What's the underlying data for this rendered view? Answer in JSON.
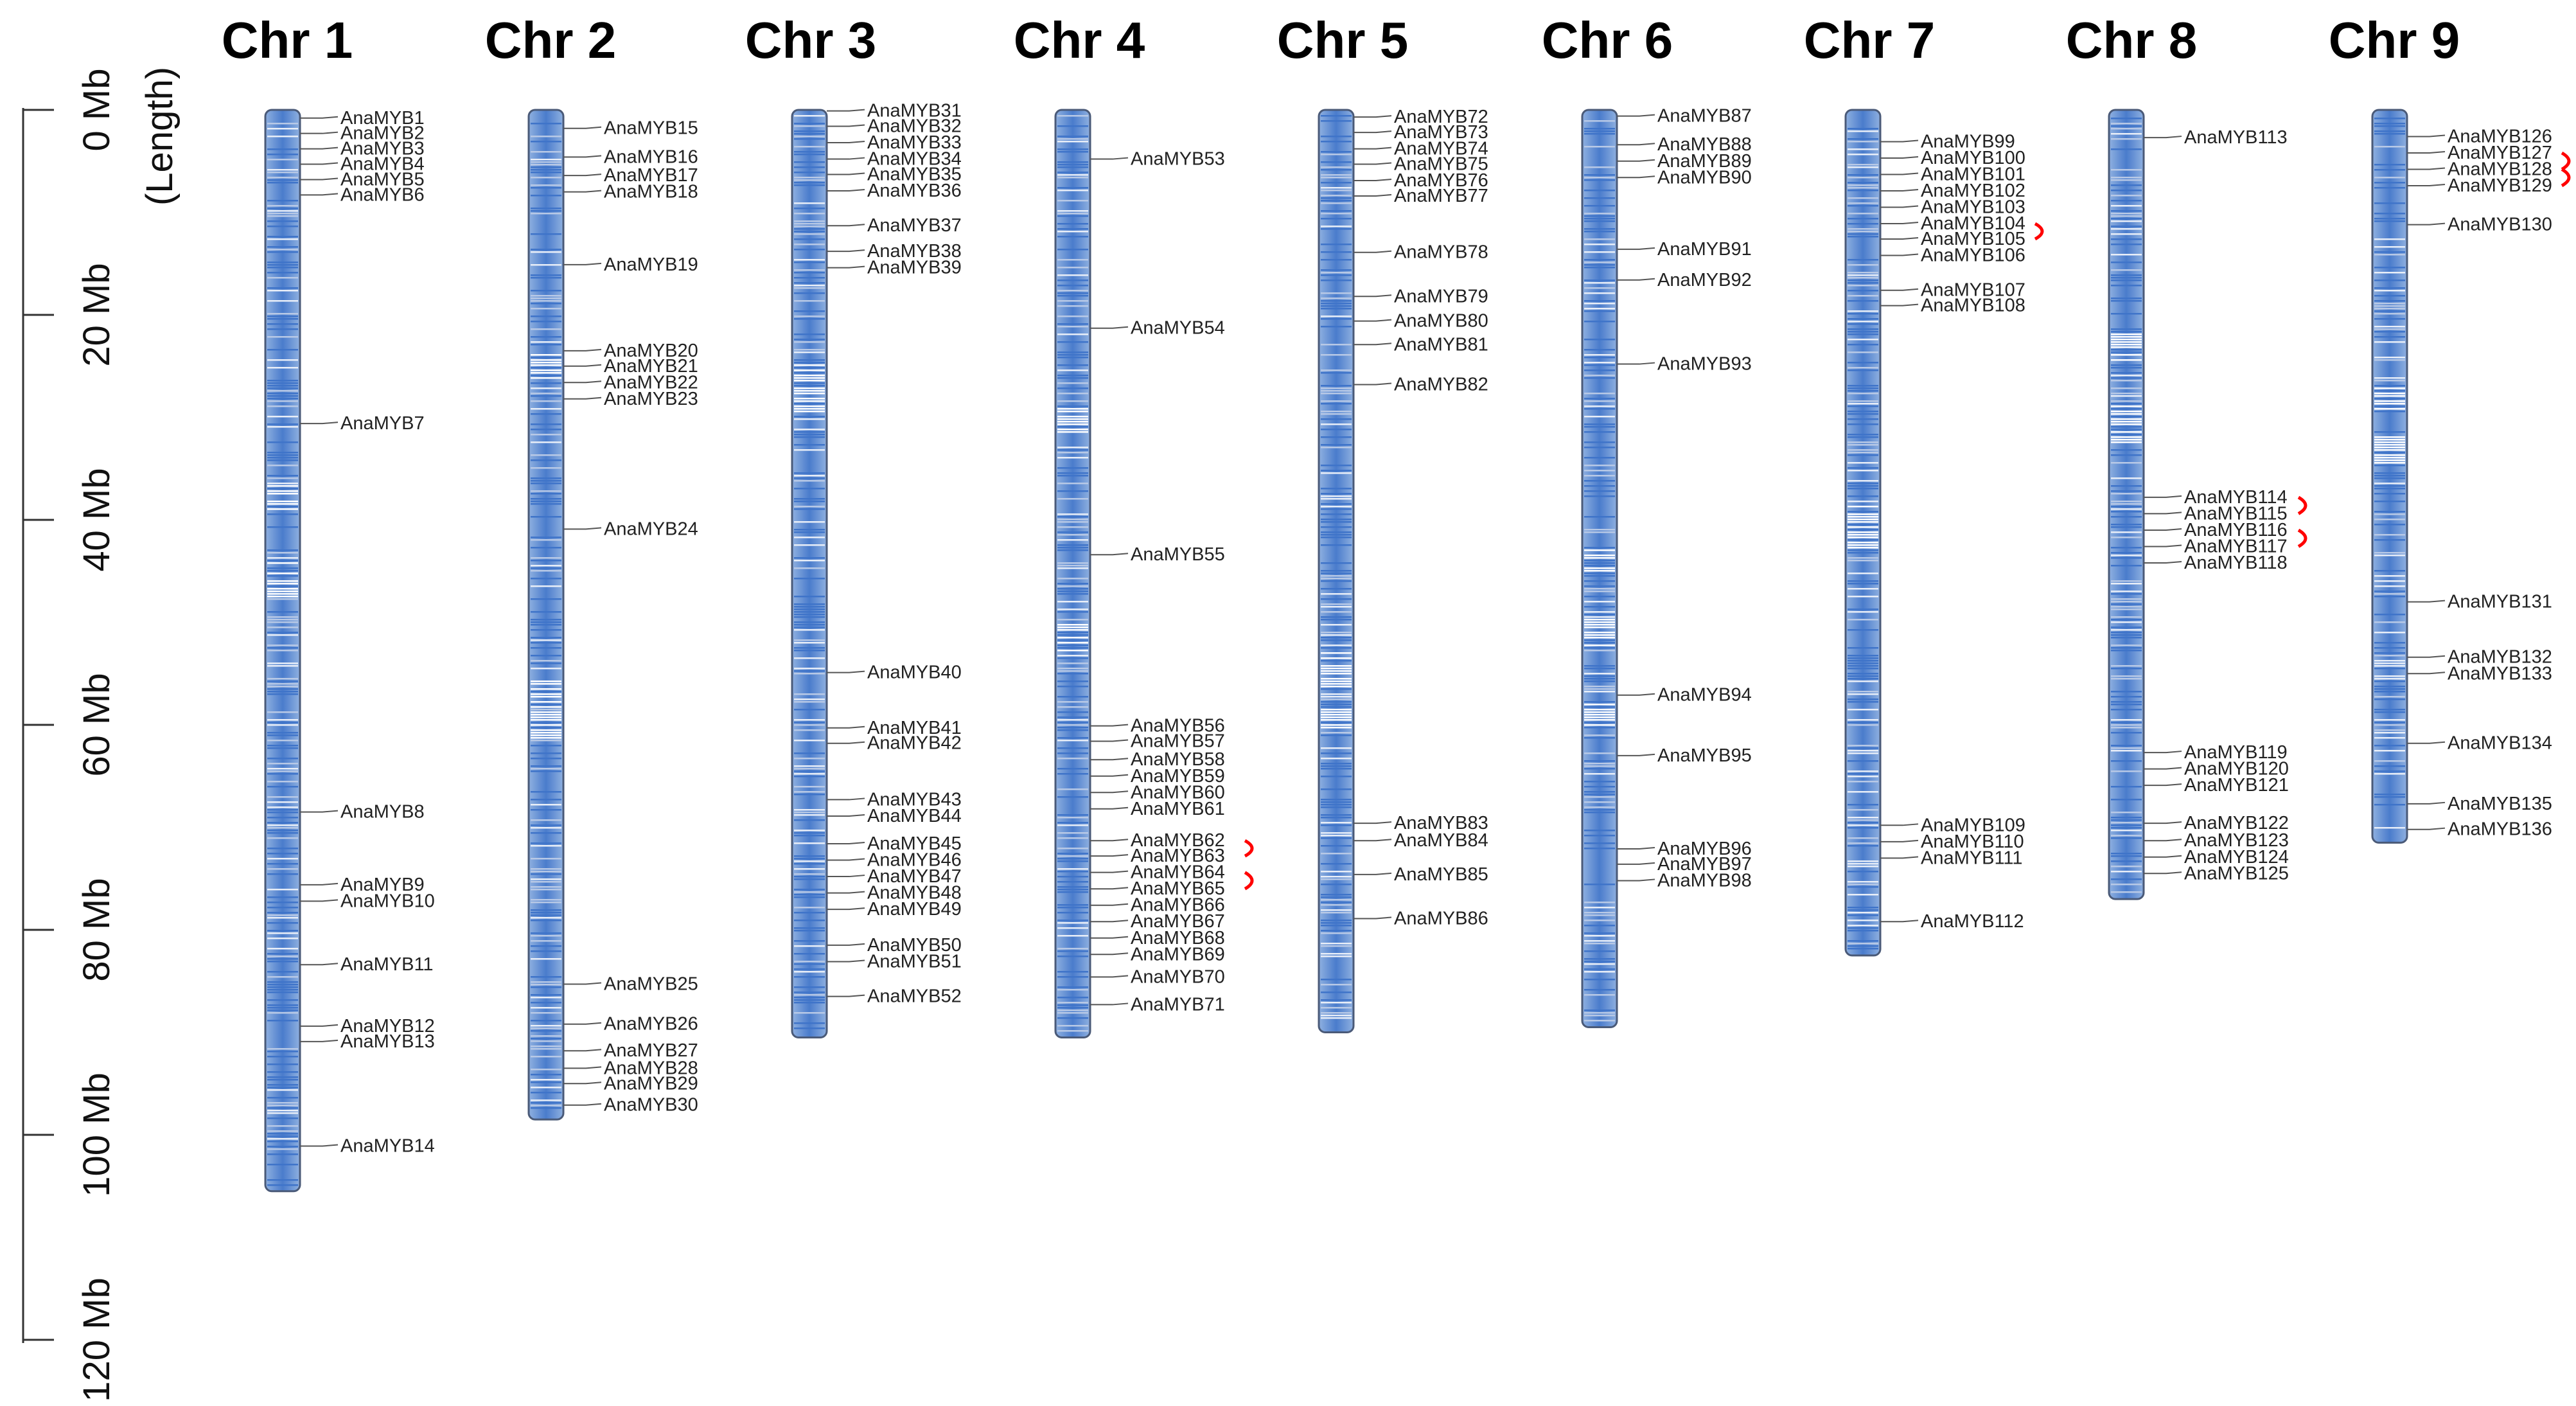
{
  "axis": {
    "title": "(Length)",
    "unit": "Mb",
    "ticks": [
      0,
      20,
      40,
      60,
      80,
      100,
      120
    ],
    "tick_labels": [
      "0 Mb",
      "20 Mb",
      "40 Mb",
      "60 Mb",
      "80 Mb",
      "100 Mb",
      "120 Mb"
    ],
    "range": [
      0,
      120
    ]
  },
  "colors": {
    "band_dark": "#3f74c9",
    "band_mid": "#6d95d4",
    "band_light": "#b8c9e6",
    "outline": "#4a5a78",
    "leader": "#555555",
    "tandem": "#ff0000",
    "text": "#111111"
  },
  "chromosomes": [
    {
      "name": "Chr 1",
      "length_mb": 105.5,
      "gaps_mb": [
        38,
        45.5,
        46
      ],
      "genes": [
        [
          "AnaMYB1",
          0.8
        ],
        [
          "AnaMYB2",
          2.3
        ],
        [
          "AnaMYB3",
          3.8
        ],
        [
          "AnaMYB4",
          5.3
        ],
        [
          "AnaMYB5",
          6.8
        ],
        [
          "AnaMYB6",
          8.3
        ],
        [
          "AnaMYB7",
          30.6
        ],
        [
          "AnaMYB8",
          68.5
        ],
        [
          "AnaMYB9",
          75.6
        ],
        [
          "AnaMYB10",
          77.2
        ],
        [
          "AnaMYB11",
          83.4
        ],
        [
          "AnaMYB12",
          89.4
        ],
        [
          "AnaMYB13",
          90.9
        ],
        [
          "AnaMYB14",
          101.1
        ]
      ]
    },
    {
      "name": "Chr 2",
      "length_mb": 98.5,
      "gaps_mb": [
        25,
        57,
        60
      ],
      "genes": [
        [
          "AnaMYB15",
          1.8
        ],
        [
          "AnaMYB16",
          4.6
        ],
        [
          "AnaMYB17",
          6.4
        ],
        [
          "AnaMYB18",
          8.0
        ],
        [
          "AnaMYB19",
          15.1
        ],
        [
          "AnaMYB20",
          23.5
        ],
        [
          "AnaMYB21",
          25.0
        ],
        [
          "AnaMYB22",
          26.6
        ],
        [
          "AnaMYB23",
          28.2
        ],
        [
          "AnaMYB24",
          40.9
        ],
        [
          "AnaMYB25",
          85.3
        ],
        [
          "AnaMYB26",
          89.2
        ],
        [
          "AnaMYB27",
          91.8
        ],
        [
          "AnaMYB28",
          93.5
        ],
        [
          "AnaMYB29",
          95.0
        ],
        [
          "AnaMYB30",
          97.1
        ]
      ]
    },
    {
      "name": "Chr 3",
      "length_mb": 90.5,
      "gaps_mb": [
        26,
        27,
        28
      ],
      "genes": [
        [
          "AnaMYB31",
          0.1
        ],
        [
          "AnaMYB32",
          1.6
        ],
        [
          "AnaMYB33",
          3.2
        ],
        [
          "AnaMYB34",
          4.8
        ],
        [
          "AnaMYB35",
          6.3
        ],
        [
          "AnaMYB36",
          7.9
        ],
        [
          "AnaMYB37",
          11.3
        ],
        [
          "AnaMYB38",
          13.8
        ],
        [
          "AnaMYB39",
          15.4
        ],
        [
          "AnaMYB40",
          54.9
        ],
        [
          "AnaMYB41",
          60.3
        ],
        [
          "AnaMYB42",
          61.8
        ],
        [
          "AnaMYB43",
          67.3
        ],
        [
          "AnaMYB44",
          68.9
        ],
        [
          "AnaMYB45",
          71.6
        ],
        [
          "AnaMYB46",
          73.2
        ],
        [
          "AnaMYB47",
          74.8
        ],
        [
          "AnaMYB48",
          76.4
        ],
        [
          "AnaMYB49",
          78.0
        ],
        [
          "AnaMYB50",
          81.5
        ],
        [
          "AnaMYB51",
          83.1
        ],
        [
          "AnaMYB52",
          86.5
        ]
      ]
    },
    {
      "name": "Chr 4",
      "length_mb": 90.5,
      "gaps_mb": [
        30,
        51.5
      ],
      "genes": [
        [
          "AnaMYB53",
          4.8
        ],
        [
          "AnaMYB54",
          21.3
        ],
        [
          "AnaMYB55",
          43.4
        ],
        [
          "AnaMYB56",
          60.1
        ],
        [
          "AnaMYB57",
          61.6
        ],
        [
          "AnaMYB58",
          63.4
        ],
        [
          "AnaMYB59",
          65.0
        ],
        [
          "AnaMYB60",
          66.6
        ],
        [
          "AnaMYB61",
          68.2
        ],
        [
          "AnaMYB62",
          71.3
        ],
        [
          "AnaMYB63",
          72.8
        ],
        [
          "AnaMYB64",
          74.4
        ],
        [
          "AnaMYB65",
          76.0
        ],
        [
          "AnaMYB66",
          77.6
        ],
        [
          "AnaMYB67",
          79.2
        ],
        [
          "AnaMYB68",
          80.8
        ],
        [
          "AnaMYB69",
          82.4
        ],
        [
          "AnaMYB70",
          84.6
        ],
        [
          "AnaMYB71",
          87.3
        ]
      ],
      "tandem_pairs": [
        [
          "AnaMYB62",
          "AnaMYB63"
        ],
        [
          "AnaMYB64",
          "AnaMYB65"
        ]
      ]
    },
    {
      "name": "Chr 5",
      "length_mb": 90.0,
      "gaps_mb": [
        54,
        55,
        59
      ],
      "genes": [
        [
          "AnaMYB72",
          0.7
        ],
        [
          "AnaMYB73",
          2.2
        ],
        [
          "AnaMYB74",
          3.8
        ],
        [
          "AnaMYB75",
          5.3
        ],
        [
          "AnaMYB76",
          6.9
        ],
        [
          "AnaMYB77",
          8.4
        ],
        [
          "AnaMYB78",
          13.9
        ],
        [
          "AnaMYB79",
          18.2
        ],
        [
          "AnaMYB80",
          20.6
        ],
        [
          "AnaMYB81",
          22.9
        ],
        [
          "AnaMYB82",
          26.8
        ],
        [
          "AnaMYB83",
          69.6
        ],
        [
          "AnaMYB84",
          71.3
        ],
        [
          "AnaMYB85",
          74.6
        ],
        [
          "AnaMYB86",
          78.9
        ]
      ]
    },
    {
      "name": "Chr 6",
      "length_mb": 89.5,
      "gaps_mb": [
        44,
        51,
        59
      ],
      "genes": [
        [
          "AnaMYB87",
          0.6
        ],
        [
          "AnaMYB88",
          3.4
        ],
        [
          "AnaMYB89",
          5.0
        ],
        [
          "AnaMYB90",
          6.6
        ],
        [
          "AnaMYB91",
          13.6
        ],
        [
          "AnaMYB92",
          16.6
        ],
        [
          "AnaMYB93",
          24.8
        ],
        [
          "AnaMYB94",
          57.1
        ],
        [
          "AnaMYB95",
          63.0
        ],
        [
          "AnaMYB96",
          72.1
        ],
        [
          "AnaMYB97",
          73.6
        ],
        [
          "AnaMYB98",
          75.2
        ]
      ]
    },
    {
      "name": "Chr 7",
      "length_mb": 82.5,
      "gaps_mb": [
        40,
        41.5
      ],
      "genes": [
        [
          "AnaMYB99",
          3.1
        ],
        [
          "AnaMYB100",
          4.7
        ],
        [
          "AnaMYB101",
          6.3
        ],
        [
          "AnaMYB102",
          7.9
        ],
        [
          "AnaMYB103",
          9.5
        ],
        [
          "AnaMYB104",
          11.1
        ],
        [
          "AnaMYB105",
          12.6
        ],
        [
          "AnaMYB106",
          14.2
        ],
        [
          "AnaMYB107",
          17.6
        ],
        [
          "AnaMYB108",
          19.1
        ],
        [
          "AnaMYB109",
          69.8
        ],
        [
          "AnaMYB110",
          71.4
        ],
        [
          "AnaMYB111",
          73.0
        ],
        [
          "AnaMYB112",
          79.2
        ]
      ],
      "tandem_pairs": [
        [
          "AnaMYB104",
          "AnaMYB105"
        ]
      ]
    },
    {
      "name": "Chr 8",
      "length_mb": 77.0,
      "gaps_mb": [
        23,
        30,
        31
      ],
      "genes": [
        [
          "AnaMYB113",
          2.7
        ],
        [
          "AnaMYB114",
          37.8
        ],
        [
          "AnaMYB115",
          39.4
        ],
        [
          "AnaMYB116",
          41.0
        ],
        [
          "AnaMYB117",
          42.6
        ],
        [
          "AnaMYB118",
          44.2
        ],
        [
          "AnaMYB119",
          62.7
        ],
        [
          "AnaMYB120",
          64.3
        ],
        [
          "AnaMYB121",
          65.9
        ],
        [
          "AnaMYB122",
          69.6
        ],
        [
          "AnaMYB123",
          71.3
        ],
        [
          "AnaMYB124",
          72.9
        ],
        [
          "AnaMYB125",
          74.5
        ]
      ],
      "tandem_pairs": [
        [
          "AnaMYB114",
          "AnaMYB115"
        ],
        [
          "AnaMYB116",
          "AnaMYB117"
        ]
      ]
    },
    {
      "name": "Chr 9",
      "length_mb": 71.5,
      "gaps_mb": [
        28,
        33
      ],
      "genes": [
        [
          "AnaMYB126",
          2.6
        ],
        [
          "AnaMYB127",
          4.2
        ],
        [
          "AnaMYB128",
          5.8
        ],
        [
          "AnaMYB129",
          7.4
        ],
        [
          "AnaMYB130",
          11.2
        ],
        [
          "AnaMYB131",
          48.0
        ],
        [
          "AnaMYB132",
          53.4
        ],
        [
          "AnaMYB133",
          55.0
        ],
        [
          "AnaMYB134",
          61.8
        ],
        [
          "AnaMYB135",
          67.7
        ],
        [
          "AnaMYB136",
          70.2
        ]
      ],
      "tandem_pairs": [
        [
          "AnaMYB127",
          "AnaMYB128"
        ],
        [
          "AnaMYB128",
          "AnaMYB129"
        ]
      ]
    }
  ]
}
